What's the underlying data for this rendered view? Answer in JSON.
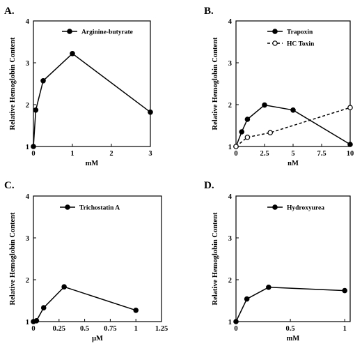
{
  "chart_data": [
    {
      "panel": "A.",
      "type": "line",
      "xlabel": "mM",
      "ylabel": "Relative Hemoglobin Content",
      "xlim": [
        0,
        3
      ],
      "ylim": [
        1,
        4
      ],
      "xticks": [
        {
          "v": 0,
          "label": "0"
        },
        {
          "v": 1,
          "label": "1"
        },
        {
          "v": 2,
          "label": "2"
        },
        {
          "v": 3,
          "label": "3"
        }
      ],
      "yticks": [
        {
          "v": 1,
          "label": "1"
        },
        {
          "v": 2,
          "label": "2"
        },
        {
          "v": 3,
          "label": "3"
        },
        {
          "v": 4,
          "label": "4"
        }
      ],
      "legend_position": "top-right",
      "series": [
        {
          "name": "Arginine-butyrate",
          "style": "solid",
          "marker": "filled",
          "x": [
            0,
            0.06,
            0.25,
            1,
            3
          ],
          "y": [
            1.0,
            1.87,
            2.57,
            3.22,
            1.82
          ]
        }
      ]
    },
    {
      "panel": "B.",
      "type": "line",
      "xlabel": "nM",
      "ylabel": "Relative Hemoglobin Content",
      "xlim": [
        0,
        10
      ],
      "ylim": [
        1,
        4
      ],
      "xticks": [
        {
          "v": 0,
          "label": "0"
        },
        {
          "v": 2.5,
          "label": "2.5"
        },
        {
          "v": 5,
          "label": "5"
        },
        {
          "v": 7.5,
          "label": "7.5"
        },
        {
          "v": 10,
          "label": "10"
        }
      ],
      "yticks": [
        {
          "v": 1,
          "label": "1"
        },
        {
          "v": 2,
          "label": "2"
        },
        {
          "v": 3,
          "label": "3"
        },
        {
          "v": 4,
          "label": "4"
        }
      ],
      "legend_position": "top-right",
      "series": [
        {
          "name": "Trapoxin",
          "style": "solid",
          "marker": "filled",
          "x": [
            0,
            0.5,
            1,
            2.5,
            5,
            10
          ],
          "y": [
            1.0,
            1.35,
            1.65,
            1.99,
            1.87,
            1.05
          ]
        },
        {
          "name": "HC Toxin",
          "style": "dashed",
          "marker": "open",
          "x": [
            0,
            1,
            3,
            10
          ],
          "y": [
            1.0,
            1.22,
            1.33,
            1.93
          ]
        }
      ]
    },
    {
      "panel": "C.",
      "type": "line",
      "xlabel": "μM",
      "ylabel": "Relative Hemoglobin Content",
      "xlim": [
        0,
        1.25
      ],
      "ylim": [
        1,
        4
      ],
      "xticks": [
        {
          "v": 0,
          "label": "0"
        },
        {
          "v": 0.25,
          "label": "0.25"
        },
        {
          "v": 0.5,
          "label": "0.5"
        },
        {
          "v": 0.75,
          "label": "0.75"
        },
        {
          "v": 1,
          "label": "1"
        },
        {
          "v": 1.25,
          "label": "1.25"
        }
      ],
      "yticks": [
        {
          "v": 1,
          "label": "1"
        },
        {
          "v": 2,
          "label": "2"
        },
        {
          "v": 3,
          "label": "3"
        },
        {
          "v": 4,
          "label": "4"
        }
      ],
      "legend_position": "top-right",
      "series": [
        {
          "name": "Trichostatin A",
          "style": "solid",
          "marker": "filled",
          "x": [
            0,
            0.03,
            0.1,
            0.3,
            1
          ],
          "y": [
            1.0,
            1.02,
            1.33,
            1.83,
            1.27
          ]
        }
      ]
    },
    {
      "panel": "D.",
      "type": "line",
      "xlabel": "mM",
      "ylabel": "Relative Hemoglobin Content",
      "xlim": [
        0,
        1.05
      ],
      "ylim": [
        1,
        4
      ],
      "xticks": [
        {
          "v": 0,
          "label": "0"
        },
        {
          "v": 0.5,
          "label": "0.5"
        },
        {
          "v": 1,
          "label": "1"
        }
      ],
      "yticks": [
        {
          "v": 1,
          "label": "1"
        },
        {
          "v": 2,
          "label": "2"
        },
        {
          "v": 3,
          "label": "3"
        },
        {
          "v": 4,
          "label": "4"
        }
      ],
      "legend_position": "top-right",
      "series": [
        {
          "name": "Hydroxyurea",
          "style": "solid",
          "marker": "filled",
          "x": [
            0,
            0.1,
            0.3,
            1
          ],
          "y": [
            1.0,
            1.54,
            1.82,
            1.74
          ]
        }
      ]
    }
  ]
}
